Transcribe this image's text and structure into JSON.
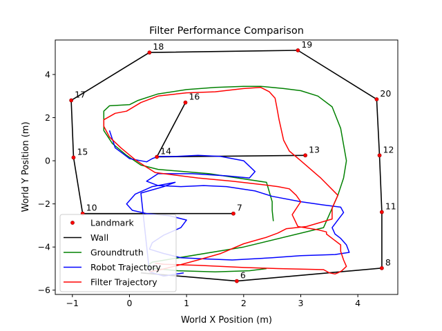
{
  "chart_data": {
    "type": "line",
    "title": "Filter Performance Comparison",
    "xlabel": "World X Position (m)",
    "ylabel": "World Y Position (m)",
    "xlim": [
      -1.3,
      4.7
    ],
    "ylim": [
      -6.2,
      5.6
    ],
    "xticks": [
      -1,
      0,
      1,
      2,
      3,
      4
    ],
    "yticks": [
      -6,
      -4,
      -2,
      0,
      2,
      4
    ],
    "grid": false,
    "legend_position": "lower-left",
    "legend": [
      {
        "label": "Landmark",
        "style": "marker",
        "color": "#ff0000"
      },
      {
        "label": "Wall",
        "style": "line",
        "color": "#000000"
      },
      {
        "label": "Groundtruth",
        "style": "line",
        "color": "#008000"
      },
      {
        "label": "Robot Trajectory",
        "style": "line",
        "color": "#0000ff"
      },
      {
        "label": "Filter Trajectory",
        "style": "line",
        "color": "#ff0000"
      }
    ],
    "landmarks": [
      {
        "id": "6",
        "x": 1.88,
        "y": -5.58
      },
      {
        "id": "7",
        "x": 1.82,
        "y": -2.45
      },
      {
        "id": "8",
        "x": 4.42,
        "y": -4.98
      },
      {
        "id": "10",
        "x": -0.82,
        "y": -2.45
      },
      {
        "id": "11",
        "x": 4.42,
        "y": -2.38
      },
      {
        "id": "12",
        "x": 4.38,
        "y": 0.25
      },
      {
        "id": "13",
        "x": 3.08,
        "y": 0.25
      },
      {
        "id": "14",
        "x": 0.48,
        "y": 0.18
      },
      {
        "id": "15",
        "x": -0.98,
        "y": 0.15
      },
      {
        "id": "16",
        "x": 0.98,
        "y": 2.7
      },
      {
        "id": "17",
        "x": -1.02,
        "y": 2.8
      },
      {
        "id": "18",
        "x": 0.35,
        "y": 5.02
      },
      {
        "id": "19",
        "x": 2.95,
        "y": 5.12
      },
      {
        "id": "20",
        "x": 4.33,
        "y": 2.85
      }
    ],
    "walls": [
      [
        [
          -0.82,
          -2.45
        ],
        [
          -0.98,
          0.15
        ],
        [
          -1.02,
          2.8
        ],
        [
          0.35,
          5.02
        ],
        [
          2.95,
          5.12
        ],
        [
          4.33,
          2.85
        ],
        [
          4.38,
          0.25
        ],
        [
          4.42,
          -2.38
        ],
        [
          4.42,
          -4.98
        ],
        [
          1.88,
          -5.58
        ],
        [
          0.2,
          -5.2
        ]
      ],
      [
        [
          0.48,
          0.18
        ],
        [
          3.08,
          0.25
        ]
      ],
      [
        [
          0.48,
          0.18
        ],
        [
          0.98,
          2.7
        ]
      ],
      [
        [
          -0.82,
          -2.45
        ],
        [
          1.82,
          -2.45
        ]
      ]
    ],
    "series": [
      {
        "name": "Groundtruth",
        "color": "#008000",
        "x": [
          2.52,
          2.5,
          2.5,
          2.4,
          1.4,
          0.5,
          0.2,
          -0.05,
          -0.3,
          -0.45,
          -0.45,
          -0.35,
          0.0,
          0.15,
          0.5,
          1.0,
          1.5,
          2.0,
          2.3,
          2.7,
          3.0,
          3.3,
          3.55,
          3.7,
          3.8,
          3.75,
          3.65,
          3.4,
          2.0,
          0.4,
          0.3,
          0.45,
          0.85,
          1.5,
          2.1,
          2.4
        ],
        "y": [
          -2.8,
          -2.3,
          -1.9,
          -1.0,
          -0.6,
          -0.4,
          -0.2,
          0.25,
          0.8,
          1.4,
          2.3,
          2.55,
          2.6,
          2.8,
          3.1,
          3.3,
          3.4,
          3.45,
          3.45,
          3.35,
          3.25,
          3.0,
          2.5,
          1.5,
          0.0,
          -0.8,
          -1.6,
          -3.1,
          -4.0,
          -4.7,
          -4.9,
          -5.0,
          -5.1,
          -5.15,
          -5.1,
          -5.0
        ]
      },
      {
        "name": "Robot Trajectory",
        "color": "#0000ff",
        "x": [
          -0.35,
          -0.3,
          -0.25,
          -0.1,
          0.0,
          0.3,
          0.4,
          0.5,
          0.8,
          1.2,
          1.6,
          2.0,
          2.2,
          2.1,
          1.7,
          1.1,
          0.5,
          0.3,
          0.5,
          0.9,
          1.3,
          1.7,
          2.2,
          2.5,
          3.0,
          3.4,
          3.7,
          3.75,
          3.65,
          3.55,
          3.6,
          3.7,
          3.8,
          3.85,
          3.6,
          3.0,
          2.5,
          1.8,
          1.3,
          0.9,
          0.6,
          0.35,
          0.4,
          0.6,
          0.9,
          1.0,
          0.7,
          0.3,
          0.05,
          -0.05,
          0.1,
          0.4,
          0.8,
          0.6,
          0.2,
          0.35,
          0.6,
          0.95
        ],
        "y": [
          1.4,
          1.0,
          0.6,
          0.3,
          0.1,
          -0.05,
          0.1,
          0.2,
          0.2,
          0.25,
          0.2,
          0.0,
          -0.5,
          -0.8,
          -0.7,
          -0.6,
          -0.6,
          -0.95,
          -1.15,
          -1.2,
          -1.15,
          -1.2,
          -1.4,
          -1.65,
          -1.9,
          -2.05,
          -2.15,
          -2.4,
          -2.75,
          -3.1,
          -3.4,
          -3.6,
          -3.9,
          -4.25,
          -4.35,
          -4.4,
          -4.5,
          -4.6,
          -4.55,
          -4.5,
          -4.3,
          -4.1,
          -3.8,
          -3.45,
          -3.1,
          -2.75,
          -2.55,
          -2.45,
          -2.3,
          -2.0,
          -1.55,
          -1.2,
          -1.0,
          -1.2,
          -1.5,
          -5.15,
          -5.35,
          -5.2
        ]
      },
      {
        "name": "Filter Trajectory",
        "color": "#ff0000",
        "x": [
          0.35,
          0.55,
          0.85,
          1.2,
          1.6,
          2.0,
          2.4,
          2.6,
          2.75,
          3.1,
          3.55,
          3.55,
          3.65,
          3.35,
          3.0,
          2.8,
          2.7,
          2.62,
          2.58,
          2.55,
          2.45,
          2.3,
          2.0,
          1.5,
          1.0,
          0.5,
          0.2,
          -0.05,
          -0.25,
          -0.45,
          -0.45,
          -0.35,
          -0.15,
          0.1,
          0.3,
          0.45,
          0.9,
          1.2,
          1.8,
          2.3,
          2.6,
          2.8,
          2.92,
          3.0,
          2.85,
          2.95,
          3.3,
          3.45,
          3.45,
          3.55,
          3.7,
          3.7,
          3.75,
          3.8,
          3.72,
          3.65,
          3.6,
          3.5,
          3.4,
          2.6,
          2.0,
          1.2,
          0.6,
          0.45
        ],
        "y": [
          -5.15,
          -5.05,
          -4.85,
          -4.6,
          -4.3,
          -3.85,
          -3.55,
          -3.35,
          -3.15,
          -3.05,
          -2.7,
          -2.2,
          -1.6,
          -0.8,
          0.0,
          0.45,
          0.95,
          1.9,
          2.5,
          2.9,
          3.2,
          3.4,
          3.35,
          3.2,
          3.15,
          3.0,
          2.7,
          2.3,
          2.2,
          1.9,
          1.6,
          1.1,
          0.6,
          0.05,
          -0.3,
          -0.55,
          -0.7,
          -0.8,
          -0.95,
          -1.1,
          -1.2,
          -1.3,
          -1.6,
          -1.9,
          -2.5,
          -3.05,
          -3.2,
          -3.3,
          -3.4,
          -3.6,
          -3.9,
          -4.2,
          -4.6,
          -4.9,
          -5.1,
          -5.2,
          -5.25,
          -5.2,
          -5.05,
          -5.0,
          -4.95,
          -4.85,
          -4.8,
          -4.75
        ]
      }
    ]
  }
}
